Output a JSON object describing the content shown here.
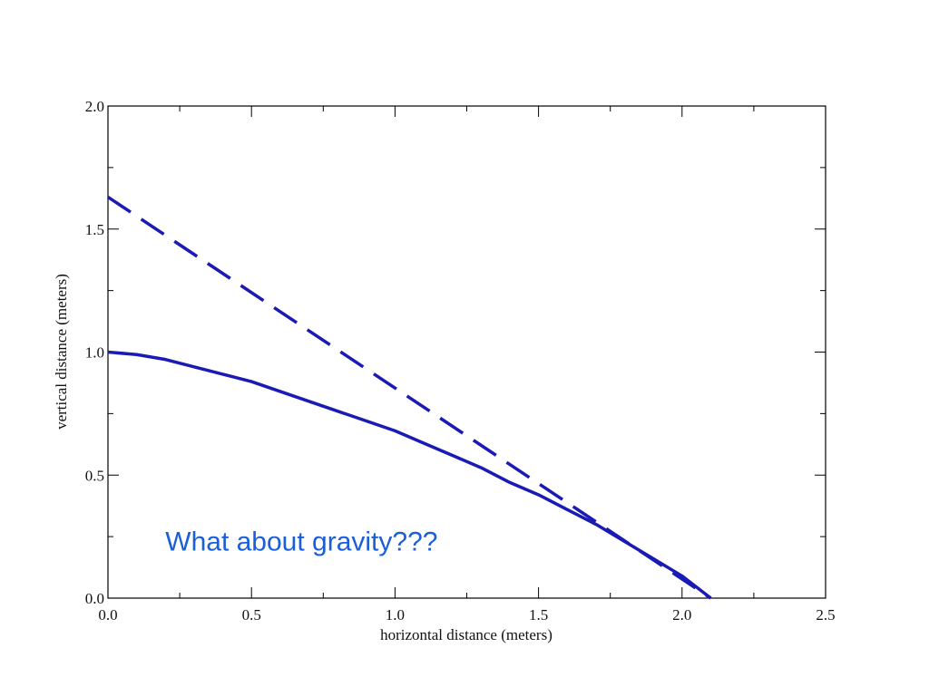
{
  "chart_data": {
    "type": "line",
    "title": "",
    "xlabel": "horizontal distance (meters)",
    "ylabel": "vertical distance (meters)",
    "xlim": [
      0,
      2.5
    ],
    "ylim": [
      0,
      2.0
    ],
    "xticks": [
      0.0,
      0.5,
      1.0,
      1.5,
      2.0,
      2.5
    ],
    "yticks": [
      0.0,
      0.5,
      1.0,
      1.5,
      2.0
    ],
    "xtick_labels": [
      "0.0",
      "0.5",
      "1.0",
      "1.5",
      "2.0",
      "2.5"
    ],
    "ytick_labels": [
      "0.0",
      "0.5",
      "1.0",
      "1.5",
      "2.0"
    ],
    "grid": false,
    "series": [
      {
        "style": "solid",
        "color": "#1a1ab4",
        "x": [
          0.0,
          0.1,
          0.2,
          0.3,
          0.4,
          0.5,
          0.6,
          0.7,
          0.8,
          0.9,
          1.0,
          1.1,
          1.2,
          1.3,
          1.4,
          1.5,
          1.6,
          1.7,
          1.8,
          1.9,
          2.0,
          2.05,
          2.1
        ],
        "y": [
          1.0,
          0.99,
          0.97,
          0.94,
          0.91,
          0.88,
          0.84,
          0.8,
          0.76,
          0.72,
          0.68,
          0.63,
          0.58,
          0.53,
          0.47,
          0.42,
          0.36,
          0.3,
          0.23,
          0.16,
          0.09,
          0.045,
          0.0
        ]
      },
      {
        "style": "dashed",
        "color": "#1a1ab4",
        "x": [
          0.0,
          2.1
        ],
        "y": [
          1.63,
          0.0
        ]
      }
    ],
    "annotations": [
      {
        "text": "What about gravity???",
        "x": 0.2,
        "y": 0.23,
        "color": "#1a5fd9"
      }
    ]
  }
}
